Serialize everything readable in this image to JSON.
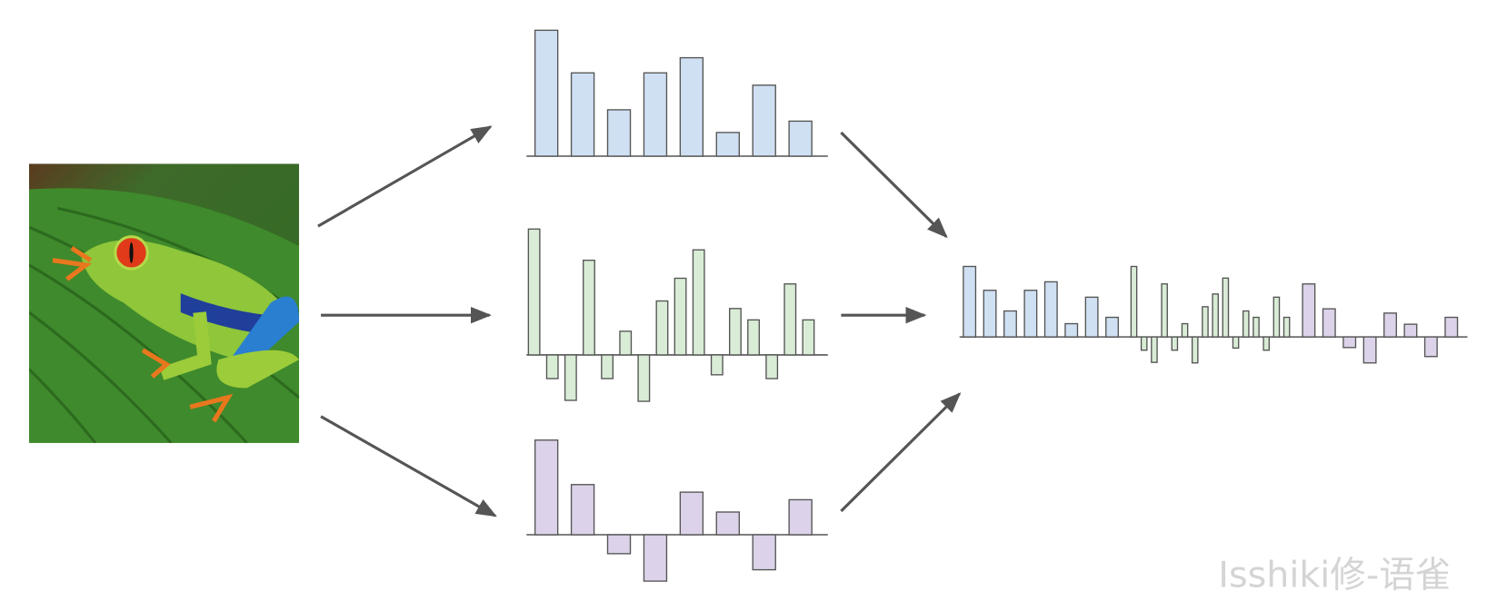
{
  "watermark": "Isshiki修-语雀",
  "features": [
    {
      "color": "#cfe0f3",
      "values": [
        133,
        88,
        49,
        88,
        104,
        25,
        75,
        37
      ]
    },
    {
      "color": "#d9ecd6",
      "values": [
        133,
        -25,
        -48,
        100,
        -25,
        25,
        -49,
        57,
        81,
        111,
        -21,
        49,
        37,
        -25,
        75,
        37
      ]
    },
    {
      "color": "#dcd3ea",
      "values": [
        100,
        53,
        -20,
        -49,
        45,
        24,
        -37,
        37
      ]
    }
  ]
}
